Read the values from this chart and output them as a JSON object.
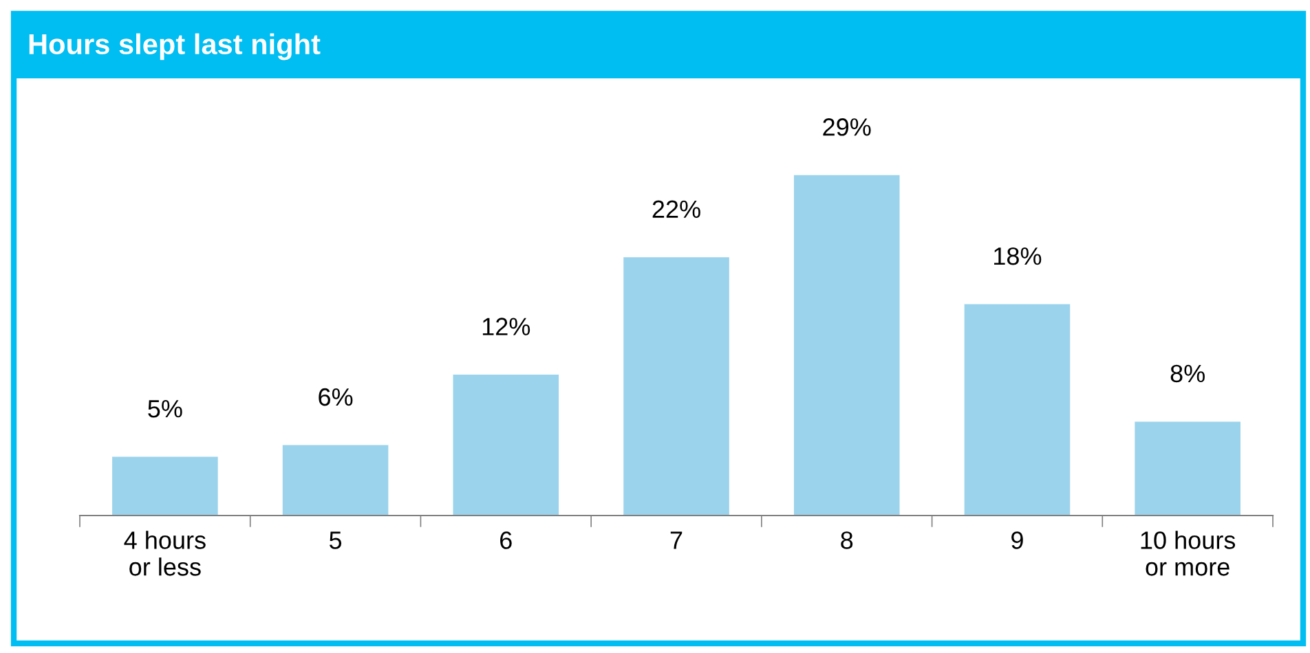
{
  "chart_data": {
    "type": "bar",
    "title": "Hours slept last night",
    "categories": [
      "4 hours\nor less",
      "5",
      "6",
      "7",
      "8",
      "9",
      "10 hours\nor more"
    ],
    "values": [
      5,
      6,
      12,
      22,
      29,
      18,
      8
    ],
    "value_labels": [
      "5%",
      "6%",
      "12%",
      "22%",
      "29%",
      "18%",
      "8%"
    ],
    "color": "#9bd3ec",
    "grid": false,
    "legend": false
  }
}
